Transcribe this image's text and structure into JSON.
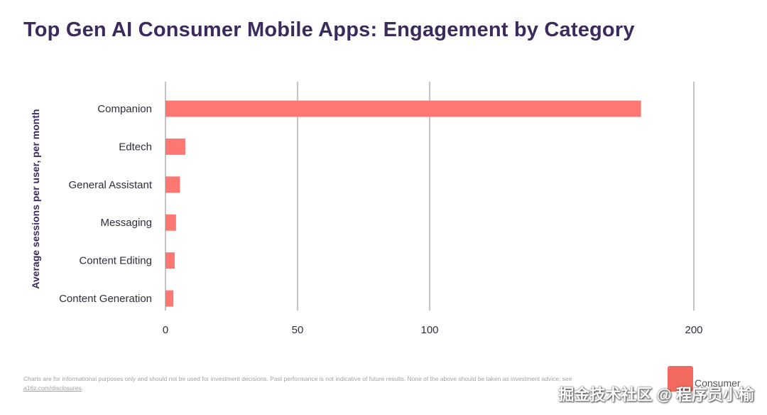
{
  "chart_data": {
    "type": "bar",
    "orientation": "horizontal",
    "title": "Top Gen AI Consumer Mobile Apps: Engagement by Category",
    "xlabel": "",
    "ylabel": "Average sessions per user, per month",
    "categories": [
      "Companion",
      "Edtech",
      "General Assistant",
      "Messaging",
      "Content Editing",
      "Content Generation"
    ],
    "values": [
      180,
      7.5,
      5.5,
      4,
      3.5,
      3
    ],
    "xlim": [
      0,
      200
    ],
    "ticks": [
      0,
      50,
      100,
      200
    ],
    "tick_labels": [
      "0",
      "50",
      "100",
      "200"
    ],
    "grid": true,
    "bar_color": "#fd7872"
  },
  "footer": {
    "disclaimer": "Charts are for informational purposes only and should not be used for investment decisions. Past performance is not indicative of future results. None of the above should be taken as investment advice; see ",
    "link": "a16z.com/disclosures",
    "suffix": "."
  },
  "brand": {
    "text": "Consumer"
  },
  "watermark": "掘金技术社区 @ 程序员小榆"
}
